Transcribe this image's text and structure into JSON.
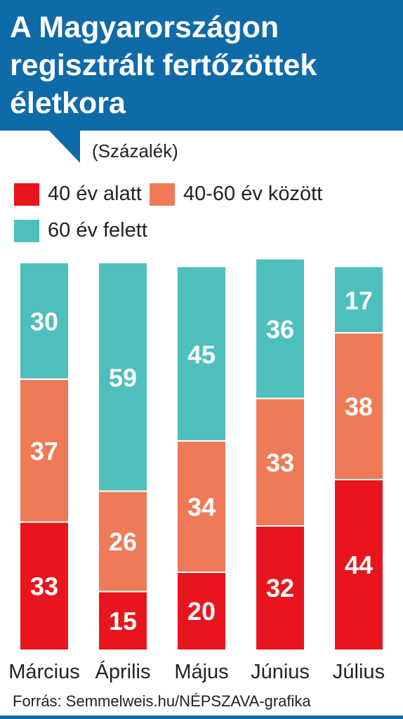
{
  "title": "A Magyarországon regisztrált fertőzöttek életkora",
  "unit_label": "(Százalék)",
  "source": "Forrás: Semmelweis.hu/NÉPSZAVA-grafika",
  "legend": [
    {
      "label": "40 év alatt",
      "color": "#e8141e"
    },
    {
      "label": "40-60 év között",
      "color": "#ee7a58"
    },
    {
      "label": "60 év felett",
      "color": "#4ebfbd"
    }
  ],
  "chart_data": {
    "type": "bar",
    "stacked": true,
    "categories": [
      "Március",
      "Április",
      "Május",
      "Június",
      "Július"
    ],
    "series": [
      {
        "name": "40 év alatt",
        "color": "#e8141e",
        "values": [
          33,
          15,
          20,
          32,
          44
        ]
      },
      {
        "name": "40-60 év között",
        "color": "#ee7a58",
        "values": [
          37,
          26,
          34,
          33,
          38
        ]
      },
      {
        "name": "60 év felett",
        "color": "#4ebfbd",
        "values": [
          30,
          59,
          45,
          36,
          17
        ]
      }
    ],
    "ylabel": "(Százalék)",
    "ylim": [
      0,
      100
    ],
    "grid": false,
    "legend_position": "top-left"
  }
}
